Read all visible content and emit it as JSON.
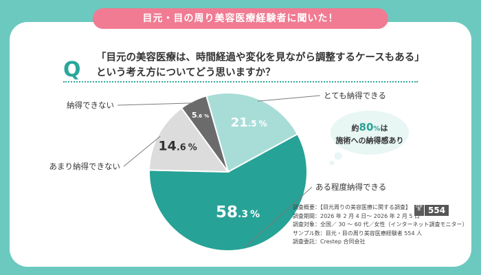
{
  "banner": "目元・目の周り美容医療経験者に聞いた！",
  "question": {
    "mark": "Q",
    "line1": "「目元の美容医療は、時間経過や変化を見ながら調整するケースもある」",
    "line2": "という考え方についてどう思いますか？"
  },
  "chart_data": {
    "type": "pie",
    "unit": "%",
    "start_angle_deg": -16,
    "slices": [
      {
        "label": "とても納得できる",
        "value": 21.5,
        "int": "21",
        "dec": ".5",
        "color": "#a8ddd7"
      },
      {
        "label": "ある程度納得できる",
        "value": 58.3,
        "int": "58",
        "dec": ".3",
        "color": "#27a296"
      },
      {
        "label": "あまり納得できない",
        "value": 14.6,
        "int": "14",
        "dec": ".6",
        "color": "#dcdcdc"
      },
      {
        "label": "納得できない",
        "value": 5.6,
        "int": "5",
        "dec": ".6",
        "color": "#6b6b6b"
      }
    ]
  },
  "bubble": {
    "line1_pre": "約",
    "line1_num": "80",
    "line1_unit": "%",
    "line1_post": "は",
    "line2": "施術への納得感あり"
  },
  "survey": {
    "lines": [
      "調査概要：【目元周りの美容医療に関する調査】",
      "調査期間：2026 年 2 月 4 日～ 2026 年 2 月 5 日",
      "調査対象：全国／ 30 ～ 60 代／女性（インターネット調査モニター）",
      "サンプル数：目元・目の周り美容医療経験者 554 人",
      "調査委託：Crestep 合同会社"
    ],
    "badge_label": "回答数",
    "badge_value": "554"
  },
  "colors": {
    "background": "#6cc9c0",
    "banner": "#f07b92",
    "accent": "#2aa79b",
    "connector": "#7a7a7a"
  }
}
